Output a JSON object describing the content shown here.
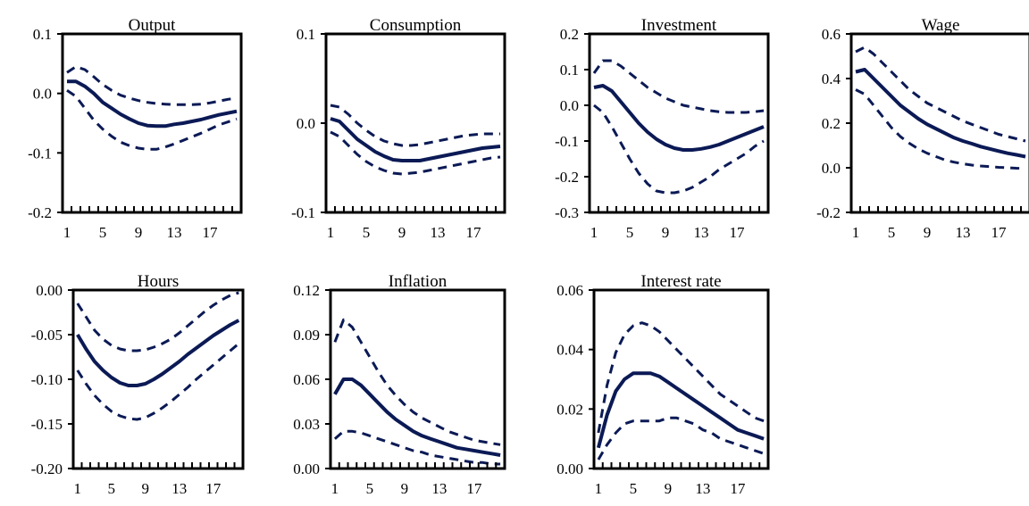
{
  "chart_data": [
    {
      "type": "line",
      "title": "Output",
      "x": [
        1,
        2,
        3,
        4,
        5,
        6,
        7,
        8,
        9,
        10,
        11,
        12,
        13,
        14,
        15,
        16,
        17,
        18,
        19,
        20
      ],
      "xticks": [
        "1",
        "5",
        "9",
        "13",
        "17"
      ],
      "ylim": [
        -0.2,
        0.1
      ],
      "yticks": [
        "0.1",
        "0.0",
        "-0.1",
        "-0.2"
      ],
      "series": [
        {
          "role": "upper",
          "style": "dashed",
          "values": [
            0.035,
            0.045,
            0.04,
            0.028,
            0.015,
            0.005,
            -0.003,
            -0.008,
            -0.012,
            -0.015,
            -0.017,
            -0.018,
            -0.019,
            -0.019,
            -0.019,
            -0.018,
            -0.016,
            -0.013,
            -0.01,
            -0.008
          ]
        },
        {
          "role": "median",
          "style": "solid",
          "values": [
            0.02,
            0.02,
            0.012,
            0.0,
            -0.015,
            -0.025,
            -0.035,
            -0.043,
            -0.05,
            -0.054,
            -0.055,
            -0.055,
            -0.052,
            -0.05,
            -0.047,
            -0.044,
            -0.04,
            -0.036,
            -0.033,
            -0.03
          ]
        },
        {
          "role": "lower",
          "style": "dashed",
          "values": [
            0.005,
            -0.005,
            -0.025,
            -0.045,
            -0.06,
            -0.072,
            -0.082,
            -0.088,
            -0.092,
            -0.094,
            -0.094,
            -0.09,
            -0.085,
            -0.079,
            -0.073,
            -0.067,
            -0.06,
            -0.053,
            -0.048,
            -0.043
          ]
        }
      ]
    },
    {
      "type": "line",
      "title": "Consumption",
      "x": [
        1,
        2,
        3,
        4,
        5,
        6,
        7,
        8,
        9,
        10,
        11,
        12,
        13,
        14,
        15,
        16,
        17,
        18,
        19,
        20
      ],
      "xticks": [
        "1",
        "5",
        "9",
        "13",
        "17"
      ],
      "ylim": [
        -0.1,
        0.1
      ],
      "yticks": [
        "0.1",
        "0.0",
        "-0.1"
      ],
      "series": [
        {
          "role": "upper",
          "style": "dashed",
          "values": [
            0.02,
            0.018,
            0.01,
            0.0,
            -0.008,
            -0.015,
            -0.02,
            -0.023,
            -0.025,
            -0.025,
            -0.024,
            -0.022,
            -0.02,
            -0.018,
            -0.016,
            -0.014,
            -0.013,
            -0.012,
            -0.012,
            -0.012
          ]
        },
        {
          "role": "median",
          "style": "solid",
          "values": [
            0.005,
            0.002,
            -0.008,
            -0.018,
            -0.025,
            -0.032,
            -0.037,
            -0.041,
            -0.042,
            -0.042,
            -0.042,
            -0.04,
            -0.038,
            -0.036,
            -0.034,
            -0.032,
            -0.03,
            -0.028,
            -0.027,
            -0.026
          ]
        },
        {
          "role": "lower",
          "style": "dashed",
          "values": [
            -0.01,
            -0.015,
            -0.025,
            -0.035,
            -0.043,
            -0.049,
            -0.053,
            -0.056,
            -0.057,
            -0.056,
            -0.055,
            -0.053,
            -0.051,
            -0.049,
            -0.047,
            -0.045,
            -0.043,
            -0.041,
            -0.039,
            -0.038
          ]
        }
      ]
    },
    {
      "type": "line",
      "title": "Investment",
      "x": [
        1,
        2,
        3,
        4,
        5,
        6,
        7,
        8,
        9,
        10,
        11,
        12,
        13,
        14,
        15,
        16,
        17,
        18,
        19,
        20
      ],
      "xticks": [
        "1",
        "5",
        "9",
        "13",
        "17"
      ],
      "ylim": [
        -0.3,
        0.2
      ],
      "yticks": [
        "0.2",
        "0.1",
        "0.0",
        "-0.1",
        "-0.2",
        "-0.3"
      ],
      "series": [
        {
          "role": "upper",
          "style": "dashed",
          "values": [
            0.09,
            0.125,
            0.125,
            0.11,
            0.09,
            0.07,
            0.05,
            0.035,
            0.02,
            0.01,
            0.0,
            -0.005,
            -0.01,
            -0.015,
            -0.018,
            -0.02,
            -0.02,
            -0.02,
            -0.018,
            -0.015
          ]
        },
        {
          "role": "median",
          "style": "solid",
          "values": [
            0.05,
            0.055,
            0.04,
            0.01,
            -0.02,
            -0.05,
            -0.075,
            -0.095,
            -0.11,
            -0.12,
            -0.125,
            -0.125,
            -0.122,
            -0.117,
            -0.11,
            -0.1,
            -0.09,
            -0.08,
            -0.07,
            -0.06
          ]
        },
        {
          "role": "lower",
          "style": "dashed",
          "values": [
            0.0,
            -0.02,
            -0.06,
            -0.105,
            -0.15,
            -0.19,
            -0.22,
            -0.24,
            -0.245,
            -0.245,
            -0.24,
            -0.23,
            -0.215,
            -0.2,
            -0.18,
            -0.165,
            -0.15,
            -0.135,
            -0.115,
            -0.1
          ]
        }
      ]
    },
    {
      "type": "line",
      "title": "Wage",
      "x": [
        1,
        2,
        3,
        4,
        5,
        6,
        7,
        8,
        9,
        10,
        11,
        12,
        13,
        14,
        15,
        16,
        17,
        18,
        19,
        20
      ],
      "xticks": [
        "1",
        "5",
        "9",
        "13",
        "17"
      ],
      "ylim": [
        -0.2,
        0.6
      ],
      "yticks": [
        "0.6",
        "0.4",
        "0.2",
        "0.0",
        "-0.2"
      ],
      "series": [
        {
          "role": "upper",
          "style": "dashed",
          "values": [
            0.52,
            0.54,
            0.51,
            0.47,
            0.43,
            0.39,
            0.35,
            0.32,
            0.29,
            0.27,
            0.25,
            0.23,
            0.21,
            0.195,
            0.18,
            0.165,
            0.15,
            0.14,
            0.13,
            0.12
          ]
        },
        {
          "role": "median",
          "style": "solid",
          "values": [
            0.43,
            0.44,
            0.4,
            0.36,
            0.32,
            0.28,
            0.25,
            0.22,
            0.195,
            0.175,
            0.155,
            0.135,
            0.12,
            0.108,
            0.095,
            0.085,
            0.075,
            0.065,
            0.058,
            0.05
          ]
        },
        {
          "role": "lower",
          "style": "dashed",
          "values": [
            0.35,
            0.33,
            0.28,
            0.23,
            0.18,
            0.14,
            0.11,
            0.085,
            0.065,
            0.05,
            0.035,
            0.025,
            0.018,
            0.012,
            0.008,
            0.005,
            0.002,
            0.0,
            -0.002,
            -0.003
          ]
        }
      ]
    },
    {
      "type": "line",
      "title": "Hours",
      "x": [
        1,
        2,
        3,
        4,
        5,
        6,
        7,
        8,
        9,
        10,
        11,
        12,
        13,
        14,
        15,
        16,
        17,
        18,
        19,
        20
      ],
      "xticks": [
        "1",
        "5",
        "9",
        "13",
        "17"
      ],
      "ylim": [
        -0.2,
        0.0
      ],
      "yticks": [
        "0.00",
        "-0.05",
        "-0.10",
        "-0.15",
        "-0.20"
      ],
      "series": [
        {
          "role": "upper",
          "style": "dashed",
          "values": [
            -0.015,
            -0.03,
            -0.045,
            -0.055,
            -0.062,
            -0.066,
            -0.068,
            -0.068,
            -0.067,
            -0.064,
            -0.06,
            -0.055,
            -0.048,
            -0.04,
            -0.032,
            -0.024,
            -0.017,
            -0.011,
            -0.006,
            -0.003
          ]
        },
        {
          "role": "median",
          "style": "solid",
          "values": [
            -0.05,
            -0.066,
            -0.08,
            -0.09,
            -0.098,
            -0.104,
            -0.107,
            -0.107,
            -0.105,
            -0.1,
            -0.094,
            -0.087,
            -0.08,
            -0.072,
            -0.065,
            -0.058,
            -0.051,
            -0.045,
            -0.039,
            -0.034
          ]
        },
        {
          "role": "lower",
          "style": "dashed",
          "values": [
            -0.09,
            -0.105,
            -0.118,
            -0.128,
            -0.136,
            -0.141,
            -0.144,
            -0.145,
            -0.143,
            -0.138,
            -0.132,
            -0.125,
            -0.117,
            -0.109,
            -0.1,
            -0.092,
            -0.084,
            -0.076,
            -0.068,
            -0.06
          ]
        }
      ]
    },
    {
      "type": "line",
      "title": "Inflation",
      "x": [
        1,
        2,
        3,
        4,
        5,
        6,
        7,
        8,
        9,
        10,
        11,
        12,
        13,
        14,
        15,
        16,
        17,
        18,
        19,
        20
      ],
      "xticks": [
        "1",
        "5",
        "9",
        "13",
        "17"
      ],
      "ylim": [
        0.0,
        0.12
      ],
      "yticks": [
        "0.12",
        "0.09",
        "0.06",
        "0.03",
        "0.00"
      ],
      "series": [
        {
          "role": "upper",
          "style": "dashed",
          "values": [
            0.085,
            0.1,
            0.095,
            0.085,
            0.075,
            0.065,
            0.056,
            0.049,
            0.043,
            0.038,
            0.034,
            0.031,
            0.028,
            0.025,
            0.023,
            0.021,
            0.019,
            0.018,
            0.017,
            0.016
          ]
        },
        {
          "role": "median",
          "style": "solid",
          "values": [
            0.05,
            0.06,
            0.06,
            0.056,
            0.05,
            0.044,
            0.038,
            0.033,
            0.029,
            0.025,
            0.022,
            0.02,
            0.018,
            0.016,
            0.014,
            0.013,
            0.012,
            0.011,
            0.01,
            0.009
          ]
        },
        {
          "role": "lower",
          "style": "dashed",
          "values": [
            0.02,
            0.025,
            0.025,
            0.024,
            0.022,
            0.02,
            0.018,
            0.016,
            0.014,
            0.012,
            0.011,
            0.009,
            0.008,
            0.007,
            0.006,
            0.005,
            0.004,
            0.004,
            0.003,
            0.003
          ]
        }
      ]
    },
    {
      "type": "line",
      "title": "Interest rate",
      "x": [
        1,
        2,
        3,
        4,
        5,
        6,
        7,
        8,
        9,
        10,
        11,
        12,
        13,
        14,
        15,
        16,
        17,
        18,
        19,
        20
      ],
      "xticks": [
        "1",
        "5",
        "9",
        "13",
        "17"
      ],
      "ylim": [
        0.0,
        0.06
      ],
      "yticks": [
        "0.06",
        "0.04",
        "0.02",
        "0.00"
      ],
      "series": [
        {
          "role": "upper",
          "style": "dashed",
          "values": [
            0.012,
            0.028,
            0.039,
            0.045,
            0.048,
            0.049,
            0.048,
            0.046,
            0.043,
            0.04,
            0.037,
            0.034,
            0.031,
            0.028,
            0.025,
            0.023,
            0.021,
            0.019,
            0.017,
            0.016
          ]
        },
        {
          "role": "median",
          "style": "solid",
          "values": [
            0.007,
            0.018,
            0.026,
            0.03,
            0.032,
            0.032,
            0.032,
            0.031,
            0.029,
            0.027,
            0.025,
            0.023,
            0.021,
            0.019,
            0.017,
            0.015,
            0.013,
            0.012,
            0.011,
            0.01
          ]
        },
        {
          "role": "lower",
          "style": "dashed",
          "values": [
            0.003,
            0.008,
            0.012,
            0.015,
            0.016,
            0.016,
            0.016,
            0.016,
            0.017,
            0.017,
            0.016,
            0.015,
            0.013,
            0.012,
            0.01,
            0.009,
            0.008,
            0.007,
            0.006,
            0.005
          ]
        }
      ]
    }
  ],
  "colors": {
    "line": "#0b1a55",
    "axis": "#000000"
  }
}
